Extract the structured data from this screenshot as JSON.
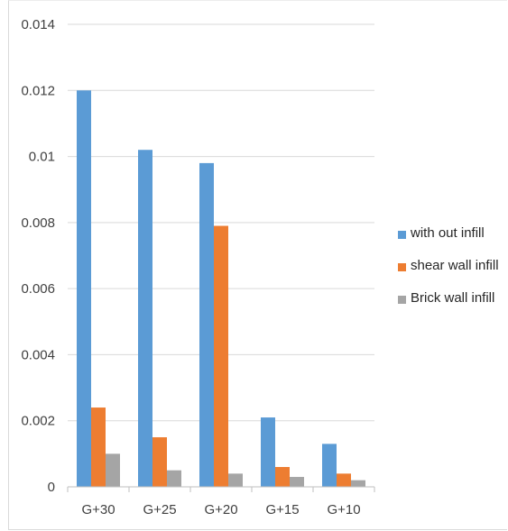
{
  "chart_data": {
    "type": "bar",
    "title": "",
    "xlabel": "",
    "ylabel": "",
    "categories": [
      "G+30",
      "G+25",
      "G+20",
      "G+15",
      "G+10"
    ],
    "series": [
      {
        "name": "with out infill",
        "color": "#5b9bd5",
        "values": [
          0.012,
          0.0102,
          0.0098,
          0.0021,
          0.0013
        ]
      },
      {
        "name": "shear wall infill",
        "color": "#ed7d31",
        "values": [
          0.0024,
          0.0015,
          0.0079,
          0.0006,
          0.0004
        ]
      },
      {
        "name": "Brick wall infill",
        "color": "#a5a5a5",
        "values": [
          0.001,
          0.0005,
          0.0004,
          0.0003,
          0.0002
        ]
      }
    ],
    "ylim": [
      0,
      0.014
    ],
    "yticks": [
      "0",
      "0.002",
      "0.004",
      "0.006",
      "0.008",
      "0.01",
      "0.012",
      "0.014"
    ],
    "grid": true,
    "legend_position": "right"
  }
}
